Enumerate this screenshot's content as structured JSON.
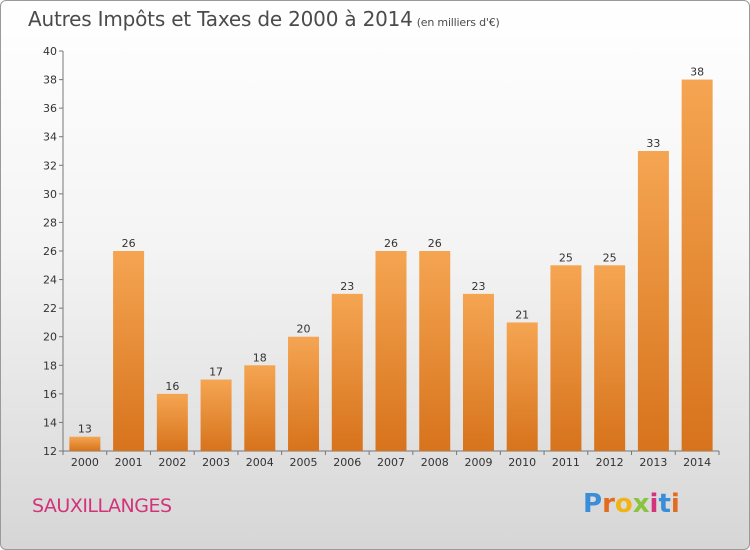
{
  "header": {
    "title": "Autres Impôts et Taxes de 2000 à 2014",
    "unit": "(en milliers d'€)"
  },
  "footer": {
    "commune": "SAUXILLANGES",
    "logo_letters": [
      "P",
      "r",
      "o",
      "x",
      "i",
      "t",
      "i"
    ],
    "logo_colors": [
      "#3a8dd8",
      "#e36b1f",
      "#f2b415",
      "#8ac43f",
      "#d2337a",
      "#3a8dd8",
      "#e36b1f"
    ]
  },
  "chart_data": {
    "type": "bar",
    "title": "Autres Impôts et Taxes de 2000 à 2014",
    "categories": [
      "2000",
      "2001",
      "2002",
      "2003",
      "2004",
      "2005",
      "2006",
      "2007",
      "2008",
      "2009",
      "2010",
      "2011",
      "2012",
      "2013",
      "2014"
    ],
    "values": [
      13,
      26,
      16,
      17,
      18,
      20,
      23,
      26,
      26,
      23,
      21,
      25,
      25,
      33,
      38
    ],
    "ylim": [
      12,
      40
    ],
    "yticks": [
      12,
      14,
      16,
      18,
      20,
      22,
      24,
      26,
      28,
      30,
      32,
      34,
      36,
      38,
      40
    ],
    "grid": false,
    "bar_color_top": "#f5a552",
    "bar_color_bottom": "#d7731c"
  }
}
